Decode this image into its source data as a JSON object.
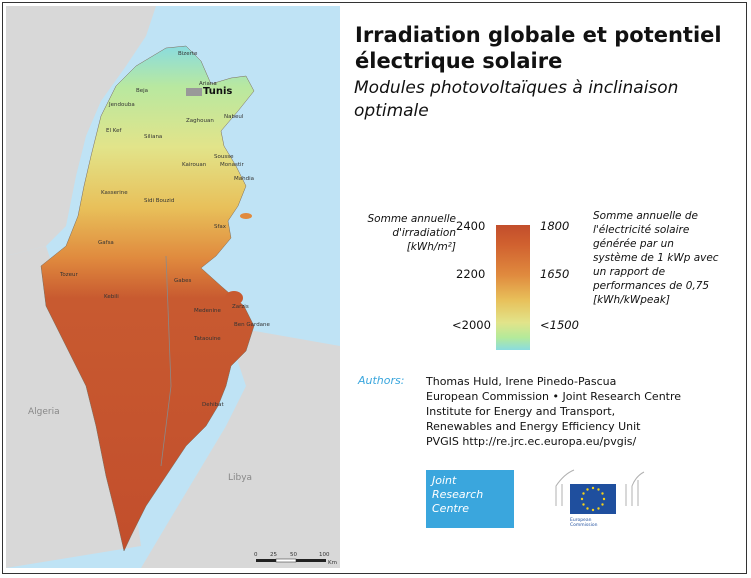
{
  "title_line1": "Irradiation globale et potentiel",
  "title_line2": "électrique solaire",
  "subtitle_line1": "Modules photovoltaïques à inclinaison",
  "subtitle_line2": "optimale",
  "legend": {
    "left_label": [
      "Somme annuelle",
      "d'irradiation",
      "[kWh/m²]"
    ],
    "left_ticks": [
      "2400",
      "2200",
      "<2000"
    ],
    "right_ticks": [
      "1800",
      "1650",
      "<1500"
    ],
    "right_label": [
      "Somme annuelle de",
      "l'électricité solaire",
      "générée par un",
      "système de 1 kWp avec",
      "un rapport de",
      "performances de 0,75",
      "[kWh/kWpeak]"
    ]
  },
  "authors": {
    "label": "Authors:",
    "lines": [
      "Thomas Huld, Irene Pinedo-Pascua",
      "European Commission • Joint Research Centre",
      "Institute for Energy and Transport,",
      "Renewables and Energy Efficiency Unit",
      "PVGIS http://re.jrc.ec.europa.eu/pvgis/"
    ]
  },
  "jrc_logo": [
    "Joint",
    "Research",
    "Centre"
  ],
  "ec_logo": [
    "European",
    "Commission"
  ],
  "map": {
    "countries": [
      "Algeria",
      "Libya"
    ],
    "capital": "Tunis",
    "places": [
      "Bizerte",
      "Ariana",
      "Beja",
      "Jendouba",
      "Nabeul",
      "Zaghouan",
      "El Kef",
      "Siliana",
      "Sousse",
      "Monastir",
      "Kairouan",
      "Mahdia",
      "Kasserine",
      "Sidi Bouzid",
      "Sfax",
      "Gafsa",
      "Tozeur",
      "Gabes",
      "Kebili",
      "Medenine",
      "Zarzis",
      "Ben Gardane",
      "Tataouine",
      "Dehibat"
    ],
    "scale_ticks": [
      "0",
      "25",
      "50",
      "100"
    ],
    "scale_unit": "Km"
  },
  "colors": {
    "high": "#c24e2c",
    "mid": "#e8c05a",
    "low": "#8adcdf",
    "sea": "#bfe3f5",
    "land_neighbor": "#d8d8d8",
    "jrc_blue": "#3aa6dd",
    "eu_blue": "#1f4f9e",
    "eu_star": "#f5d21a"
  }
}
